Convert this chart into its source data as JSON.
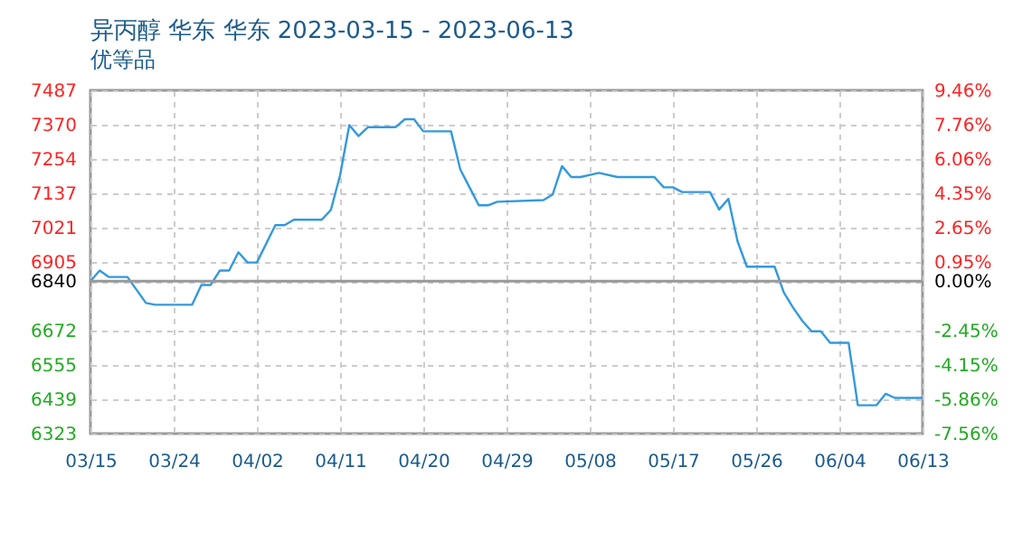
{
  "chart_data": {
    "type": "line",
    "title": "异丙醇 华东 华东 2023-03-15 - 2023-06-13",
    "subtitle": "优等品",
    "x": [
      "2023-03-15",
      "2023-03-16",
      "2023-03-17",
      "2023-03-19",
      "2023-03-21",
      "2023-03-22",
      "2023-03-26",
      "2023-03-27",
      "2023-03-28",
      "2023-03-29",
      "2023-03-30",
      "2023-03-31",
      "2023-04-01",
      "2023-04-02",
      "2023-04-04",
      "2023-04-05",
      "2023-04-06",
      "2023-04-09",
      "2023-04-10",
      "2023-04-11",
      "2023-04-12",
      "2023-04-13",
      "2023-04-14",
      "2023-04-17",
      "2023-04-18",
      "2023-04-19",
      "2023-04-20",
      "2023-04-23",
      "2023-04-24",
      "2023-04-25",
      "2023-04-26",
      "2023-04-27",
      "2023-04-28",
      "2023-05-03",
      "2023-05-04",
      "2023-05-05",
      "2023-05-06",
      "2023-05-07",
      "2023-05-09",
      "2023-05-11",
      "2023-05-15",
      "2023-05-16",
      "2023-05-17",
      "2023-05-18",
      "2023-05-21",
      "2023-05-22",
      "2023-05-23",
      "2023-05-24",
      "2023-05-25",
      "2023-05-28",
      "2023-05-29",
      "2023-05-30",
      "2023-05-31",
      "2023-06-01",
      "2023-06-02",
      "2023-06-03",
      "2023-06-05",
      "2023-06-06",
      "2023-06-08",
      "2023-06-09",
      "2023-06-10",
      "2023-06-13"
    ],
    "series": [
      {
        "color": "#3399dd",
        "values": [
          6840,
          6876,
          6854,
          6854,
          6766,
          6760,
          6760,
          6827,
          6827,
          6876,
          6876,
          6938,
          6903,
          6903,
          7030,
          7030,
          7048,
          7048,
          7081,
          7199,
          7369,
          7332,
          7362,
          7362,
          7389,
          7389,
          7348,
          7348,
          7219,
          7158,
          7097,
          7097,
          7109,
          7115,
          7134,
          7230,
          7193,
          7193,
          7207,
          7193,
          7193,
          7158,
          7158,
          7142,
          7142,
          7083,
          7119,
          6974,
          6889,
          6889,
          6801,
          6750,
          6705,
          6670,
          6670,
          6631,
          6631,
          6419,
          6419,
          6458,
          6444,
          6444
        ]
      }
    ],
    "xlim": [
      "2023-03-15",
      "2023-06-13"
    ],
    "xticks": [
      {
        "value": "2023-03-15",
        "label": "03/15"
      },
      {
        "value": "2023-03-24",
        "label": "03/24"
      },
      {
        "value": "2023-04-02",
        "label": "04/02"
      },
      {
        "value": "2023-04-11",
        "label": "04/11"
      },
      {
        "value": "2023-04-20",
        "label": "04/20"
      },
      {
        "value": "2023-04-29",
        "label": "04/29"
      },
      {
        "value": "2023-05-08",
        "label": "05/08"
      },
      {
        "value": "2023-05-17",
        "label": "05/17"
      },
      {
        "value": "2023-05-26",
        "label": "05/26"
      },
      {
        "value": "2023-06-04",
        "label": "06/04"
      },
      {
        "value": "2023-06-13",
        "label": "06/13"
      }
    ],
    "ylim": [
      6323,
      7487
    ],
    "yticks": [
      6323,
      6439,
      6555,
      6672,
      6840,
      6905,
      7021,
      7137,
      7254,
      7370,
      7487
    ],
    "y2lim": [
      -7.56,
      9.46
    ],
    "y2ticks": [
      {
        "value": -7.56,
        "label": "-7.56%"
      },
      {
        "value": -5.86,
        "label": "-5.86%"
      },
      {
        "value": -4.15,
        "label": "-4.15%"
      },
      {
        "value": -2.45,
        "label": "-2.45%"
      },
      {
        "value": 0,
        "label": "0.00%"
      },
      {
        "value": 0.95,
        "label": "0.95%"
      },
      {
        "value": 2.65,
        "label": "2.65%"
      },
      {
        "value": 4.35,
        "label": "4.35%"
      },
      {
        "value": 6.06,
        "label": "6.06%"
      },
      {
        "value": 7.76,
        "label": "7.76%"
      },
      {
        "value": 9.46,
        "label": "9.46%"
      }
    ],
    "ref_lines": [
      {
        "axis": "y",
        "value": 6840,
        "color": "#999999"
      }
    ],
    "grid": true,
    "line_style": "solid"
  }
}
